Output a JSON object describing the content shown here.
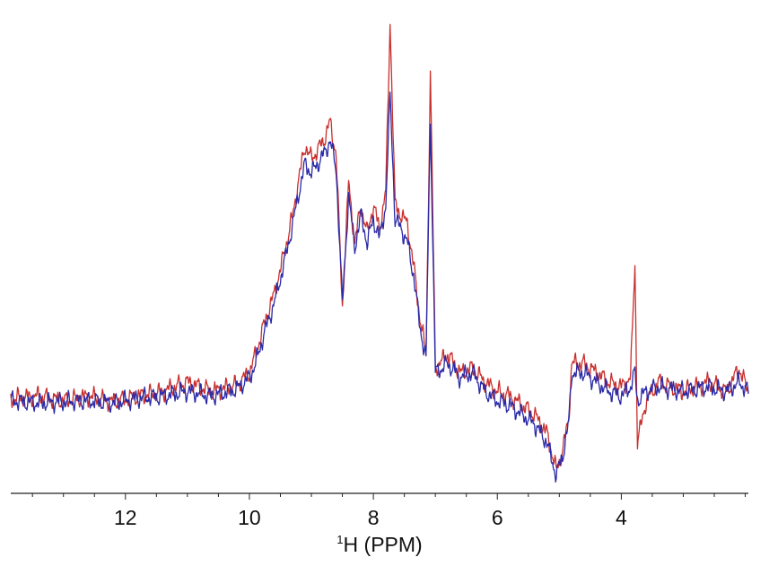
{
  "chart_data": {
    "type": "line",
    "title": "",
    "xlabel_superscript": "1",
    "xlabel": "H (PPM)",
    "ylabel": "",
    "x_reversed": true,
    "xlim": [
      13.85,
      1.95
    ],
    "ylim": [
      0,
      1
    ],
    "grid": false,
    "legend": "none",
    "y_axis_visible": false,
    "x_major_ticks": [
      12,
      10,
      8,
      6,
      4
    ],
    "x_major_tick_labels": [
      "12",
      "10",
      "8",
      "6",
      "4"
    ],
    "x_minor_tick_step": 0.5,
    "series": [
      {
        "color": "#c8302e",
        "points": [
          [
            13.85,
            0.185
          ],
          [
            13.4,
            0.19
          ],
          [
            13.0,
            0.18
          ],
          [
            12.6,
            0.19
          ],
          [
            12.2,
            0.178
          ],
          [
            11.8,
            0.19
          ],
          [
            11.4,
            0.2
          ],
          [
            11.0,
            0.22
          ],
          [
            10.6,
            0.2
          ],
          [
            10.2,
            0.215
          ],
          [
            10.0,
            0.24
          ],
          [
            9.9,
            0.28
          ],
          [
            9.75,
            0.35
          ],
          [
            9.6,
            0.41
          ],
          [
            9.45,
            0.49
          ],
          [
            9.3,
            0.58
          ],
          [
            9.2,
            0.66
          ],
          [
            9.1,
            0.73
          ],
          [
            9.0,
            0.7
          ],
          [
            8.9,
            0.72
          ],
          [
            8.8,
            0.74
          ],
          [
            8.7,
            0.78
          ],
          [
            8.6,
            0.71
          ],
          [
            8.5,
            0.38
          ],
          [
            8.4,
            0.65
          ],
          [
            8.3,
            0.52
          ],
          [
            8.2,
            0.6
          ],
          [
            8.1,
            0.54
          ],
          [
            8.0,
            0.6
          ],
          [
            7.9,
            0.55
          ],
          [
            7.8,
            0.63
          ],
          [
            7.73,
            1.0
          ],
          [
            7.65,
            0.6
          ],
          [
            7.55,
            0.58
          ],
          [
            7.45,
            0.56
          ],
          [
            7.35,
            0.47
          ],
          [
            7.25,
            0.36
          ],
          [
            7.15,
            0.28
          ],
          [
            7.08,
            0.89
          ],
          [
            7.0,
            0.25
          ],
          [
            6.8,
            0.28
          ],
          [
            6.6,
            0.24
          ],
          [
            6.4,
            0.25
          ],
          [
            6.2,
            0.22
          ],
          [
            6.0,
            0.2
          ],
          [
            5.8,
            0.19
          ],
          [
            5.6,
            0.17
          ],
          [
            5.4,
            0.15
          ],
          [
            5.2,
            0.11
          ],
          [
            5.05,
            0.03
          ],
          [
            4.95,
            0.07
          ],
          [
            4.85,
            0.14
          ],
          [
            4.8,
            0.26
          ],
          [
            4.6,
            0.26
          ],
          [
            4.4,
            0.24
          ],
          [
            4.2,
            0.22
          ],
          [
            4.0,
            0.21
          ],
          [
            3.85,
            0.23
          ],
          [
            3.78,
            0.48
          ],
          [
            3.74,
            0.09
          ],
          [
            3.6,
            0.18
          ],
          [
            3.4,
            0.22
          ],
          [
            3.0,
            0.2
          ],
          [
            2.6,
            0.22
          ],
          [
            2.3,
            0.2
          ],
          [
            2.1,
            0.25
          ],
          [
            1.95,
            0.2
          ]
        ]
      },
      {
        "color": "#2a2aa8",
        "points": [
          [
            13.85,
            0.18
          ],
          [
            13.4,
            0.175
          ],
          [
            13.0,
            0.178
          ],
          [
            12.6,
            0.18
          ],
          [
            12.2,
            0.175
          ],
          [
            11.8,
            0.185
          ],
          [
            11.4,
            0.19
          ],
          [
            11.0,
            0.2
          ],
          [
            10.6,
            0.19
          ],
          [
            10.2,
            0.205
          ],
          [
            10.0,
            0.23
          ],
          [
            9.9,
            0.26
          ],
          [
            9.75,
            0.33
          ],
          [
            9.6,
            0.39
          ],
          [
            9.45,
            0.47
          ],
          [
            9.3,
            0.56
          ],
          [
            9.2,
            0.63
          ],
          [
            9.1,
            0.69
          ],
          [
            9.0,
            0.67
          ],
          [
            8.9,
            0.69
          ],
          [
            8.8,
            0.71
          ],
          [
            8.7,
            0.74
          ],
          [
            8.6,
            0.68
          ],
          [
            8.5,
            0.39
          ],
          [
            8.4,
            0.62
          ],
          [
            8.3,
            0.51
          ],
          [
            8.2,
            0.58
          ],
          [
            8.1,
            0.52
          ],
          [
            8.0,
            0.57
          ],
          [
            7.9,
            0.53
          ],
          [
            7.8,
            0.6
          ],
          [
            7.73,
            0.84
          ],
          [
            7.65,
            0.57
          ],
          [
            7.55,
            0.55
          ],
          [
            7.45,
            0.52
          ],
          [
            7.35,
            0.45
          ],
          [
            7.25,
            0.34
          ],
          [
            7.15,
            0.27
          ],
          [
            7.08,
            0.79
          ],
          [
            7.0,
            0.24
          ],
          [
            6.8,
            0.26
          ],
          [
            6.6,
            0.23
          ],
          [
            6.4,
            0.24
          ],
          [
            6.2,
            0.2
          ],
          [
            6.0,
            0.18
          ],
          [
            5.8,
            0.17
          ],
          [
            5.6,
            0.15
          ],
          [
            5.4,
            0.13
          ],
          [
            5.2,
            0.09
          ],
          [
            5.05,
            0.02
          ],
          [
            4.95,
            0.06
          ],
          [
            4.85,
            0.13
          ],
          [
            4.8,
            0.24
          ],
          [
            4.6,
            0.24
          ],
          [
            4.4,
            0.22
          ],
          [
            4.2,
            0.2
          ],
          [
            4.0,
            0.19
          ],
          [
            3.85,
            0.21
          ],
          [
            3.78,
            0.24
          ],
          [
            3.74,
            0.18
          ],
          [
            3.6,
            0.2
          ],
          [
            3.4,
            0.21
          ],
          [
            3.0,
            0.2
          ],
          [
            2.6,
            0.21
          ],
          [
            2.3,
            0.2
          ],
          [
            2.1,
            0.22
          ],
          [
            1.95,
            0.2
          ]
        ]
      }
    ]
  }
}
